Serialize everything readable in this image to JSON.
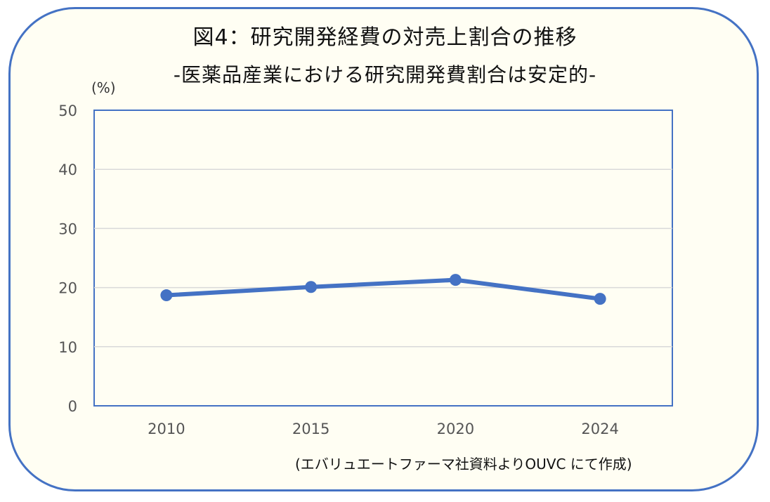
{
  "title": "図4：研究開発経費の対売上割合の推移",
  "subtitle": "-医薬品産業における研究開発費割合は安定的-",
  "unit_label": "(%)",
  "source_note": "(エバリュエートファーマ社資料よりOUVC にて作成)",
  "colors": {
    "series": "#4472c4",
    "frame": "#4472c4",
    "background": "#fffef3",
    "grid": "#d9d9d9"
  },
  "chart_data": {
    "type": "line",
    "categories": [
      "2010",
      "2015",
      "2020",
      "2024"
    ],
    "series": [
      {
        "values": [
          18.7,
          20.1,
          21.3,
          18.1
        ]
      }
    ],
    "xlabel": "",
    "ylabel": "(%)",
    "ylim": [
      0,
      50
    ],
    "yticks": [
      "0",
      "10",
      "20",
      "30",
      "40",
      "50"
    ],
    "grid": true,
    "legend": "none"
  }
}
